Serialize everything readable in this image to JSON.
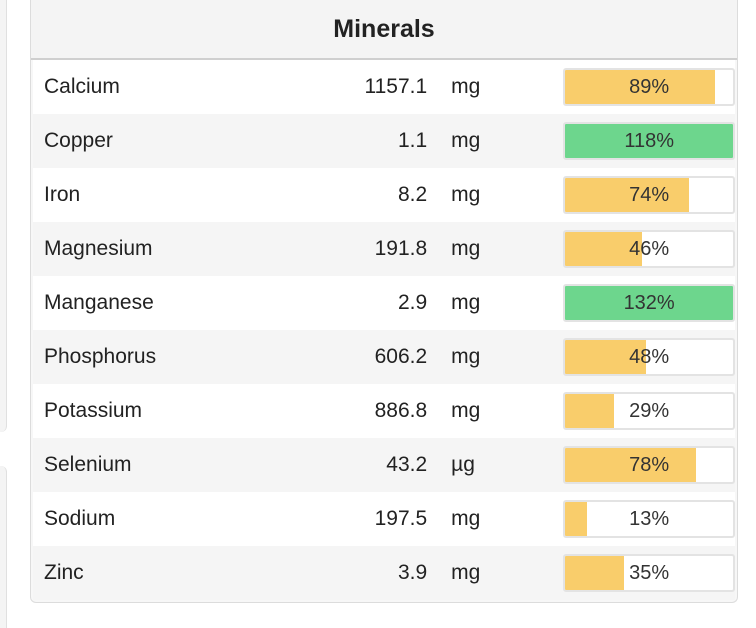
{
  "panel": {
    "title": "Minerals"
  },
  "colors": {
    "under_100": "#f9cd6b",
    "over_100": "#6dd68d"
  },
  "minerals": [
    {
      "name": "Calcium",
      "amount": "1157.1",
      "unit": "mg",
      "percent_label": "89%",
      "percent": 89
    },
    {
      "name": "Copper",
      "amount": "1.1",
      "unit": "mg",
      "percent_label": "118%",
      "percent": 118
    },
    {
      "name": "Iron",
      "amount": "8.2",
      "unit": "mg",
      "percent_label": "74%",
      "percent": 74
    },
    {
      "name": "Magnesium",
      "amount": "191.8",
      "unit": "mg",
      "percent_label": "46%",
      "percent": 46
    },
    {
      "name": "Manganese",
      "amount": "2.9",
      "unit": "mg",
      "percent_label": "132%",
      "percent": 132
    },
    {
      "name": "Phosphorus",
      "amount": "606.2",
      "unit": "mg",
      "percent_label": "48%",
      "percent": 48
    },
    {
      "name": "Potassium",
      "amount": "886.8",
      "unit": "mg",
      "percent_label": "29%",
      "percent": 29
    },
    {
      "name": "Selenium",
      "amount": "43.2",
      "unit": "µg",
      "percent_label": "78%",
      "percent": 78
    },
    {
      "name": "Sodium",
      "amount": "197.5",
      "unit": "mg",
      "percent_label": "13%",
      "percent": 13
    },
    {
      "name": "Zinc",
      "amount": "3.9",
      "unit": "mg",
      "percent_label": "35%",
      "percent": 35
    }
  ]
}
